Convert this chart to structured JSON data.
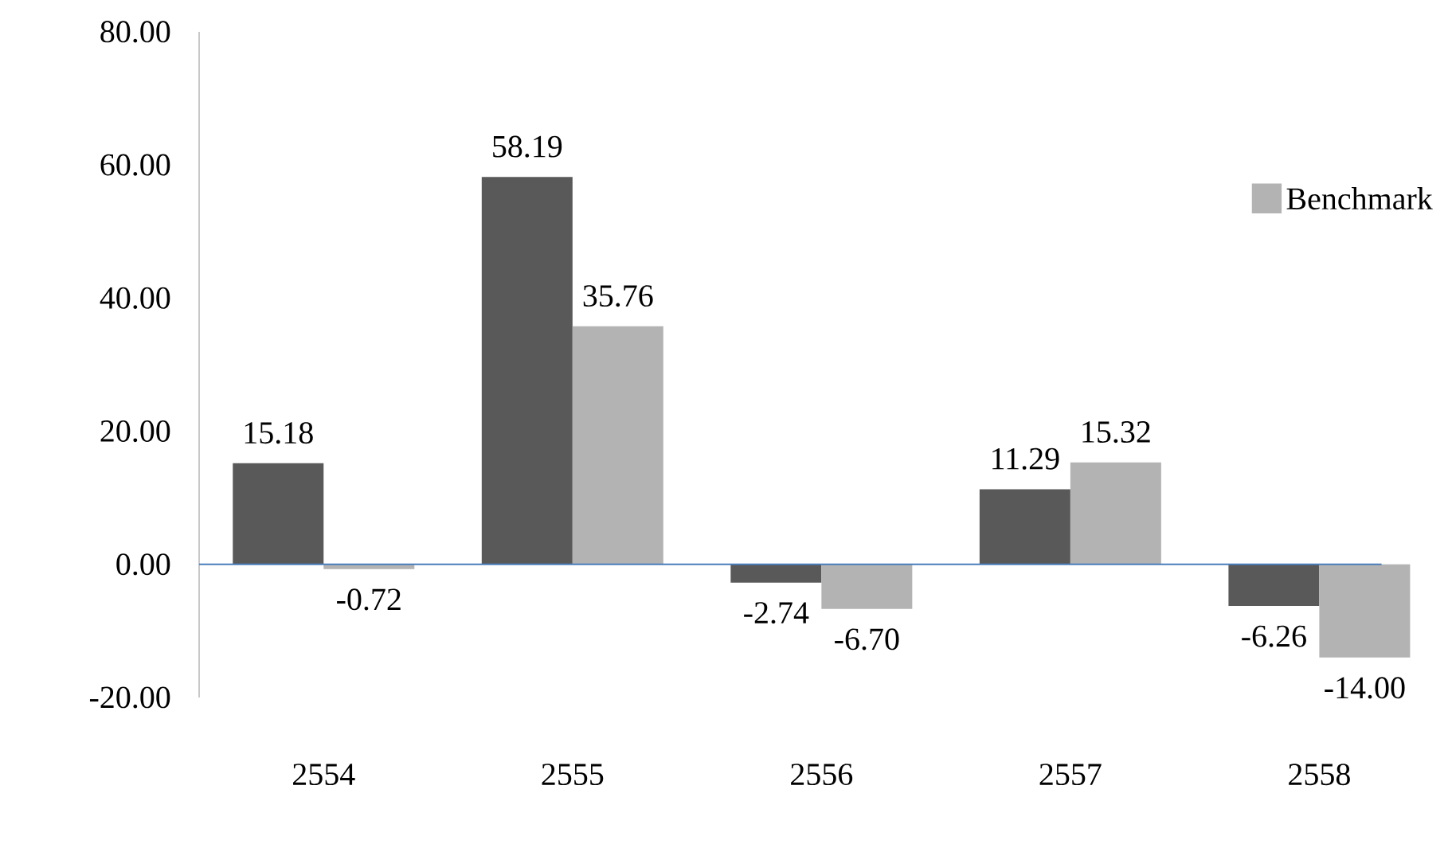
{
  "chart_data": {
    "type": "bar",
    "categories": [
      "2554",
      "2555",
      "2556",
      "2557",
      "2558"
    ],
    "series": [
      {
        "color": "#595959",
        "values": [
          15.18,
          58.19,
          -2.74,
          11.29,
          -6.26
        ],
        "value_labels": [
          "15.18",
          "58.19",
          "-2.74",
          "11.29",
          "-6.26"
        ]
      },
      {
        "name": "Benchmark",
        "color": "#b3b3b3",
        "values": [
          -0.72,
          35.76,
          -6.7,
          15.32,
          -14.0
        ],
        "value_labels": [
          "-0.72",
          "35.76",
          "-6.70",
          "15.32",
          "-14.00"
        ]
      }
    ],
    "ylim": [
      -20,
      80
    ],
    "yticks": [
      {
        "value": -20,
        "label": "-20.00"
      },
      {
        "value": 0,
        "label": "0.00"
      },
      {
        "value": 20,
        "label": "20.00"
      },
      {
        "value": 40,
        "label": "40.00"
      },
      {
        "value": 60,
        "label": "60.00"
      },
      {
        "value": 80,
        "label": "80.00"
      }
    ],
    "ref_lines": [
      {
        "axis": "y",
        "value": 0,
        "color": "#4a7ebb"
      }
    ],
    "grid": false,
    "legend": "right"
  }
}
